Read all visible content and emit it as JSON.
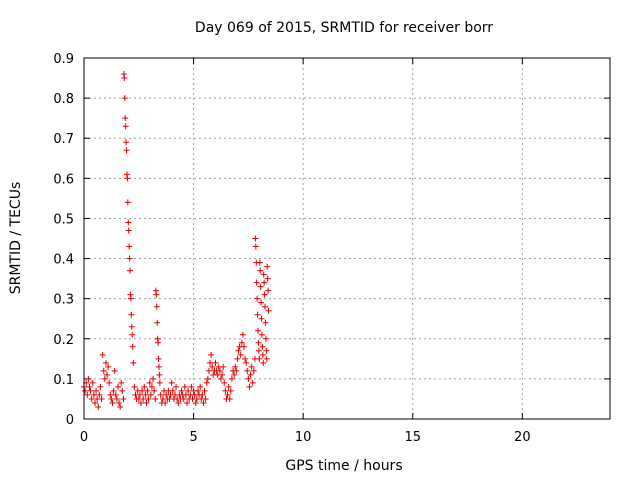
{
  "chart_data": {
    "type": "scatter",
    "title": "Day 069 of 2015, SRMTID for receiver borr",
    "xlabel": "GPS time / hours",
    "ylabel": "SRMTID / TECUs",
    "xlim": [
      0,
      24
    ],
    "ylim": [
      0,
      0.9
    ],
    "xticks": [
      0,
      5,
      10,
      15,
      20
    ],
    "yticks": [
      0,
      0.1,
      0.2,
      0.3,
      0.4,
      0.5,
      0.6,
      0.7,
      0.8,
      0.9
    ],
    "xtick_labels": [
      "0",
      "5",
      "10",
      "15",
      "20"
    ],
    "ytick_labels": [
      "0",
      "0.1",
      "0.2",
      "0.3",
      "0.4",
      "0.5",
      "0.6",
      "0.7",
      "0.8",
      "0.9"
    ],
    "grid": true,
    "marker": "+",
    "color": "#e00000",
    "series": [
      {
        "name": "SRMTID",
        "points": [
          [
            0.0,
            0.08
          ],
          [
            0.05,
            0.07
          ],
          [
            0.1,
            0.09
          ],
          [
            0.15,
            0.06
          ],
          [
            0.2,
            0.1
          ],
          [
            0.25,
            0.08
          ],
          [
            0.3,
            0.07
          ],
          [
            0.35,
            0.05
          ],
          [
            0.4,
            0.09
          ],
          [
            0.45,
            0.06
          ],
          [
            0.5,
            0.04
          ],
          [
            0.55,
            0.07
          ],
          [
            0.6,
            0.05
          ],
          [
            0.65,
            0.03
          ],
          [
            0.7,
            0.06
          ],
          [
            0.75,
            0.08
          ],
          [
            0.8,
            0.05
          ],
          [
            0.85,
            0.16
          ],
          [
            0.9,
            0.12
          ],
          [
            0.95,
            0.1
          ],
          [
            1.0,
            0.14
          ],
          [
            1.05,
            0.11
          ],
          [
            1.1,
            0.13
          ],
          [
            1.15,
            0.09
          ],
          [
            1.2,
            0.06
          ],
          [
            1.25,
            0.05
          ],
          [
            1.3,
            0.04
          ],
          [
            1.35,
            0.07
          ],
          [
            1.4,
            0.12
          ],
          [
            1.45,
            0.06
          ],
          [
            1.5,
            0.05
          ],
          [
            1.55,
            0.08
          ],
          [
            1.6,
            0.04
          ],
          [
            1.65,
            0.03
          ],
          [
            1.7,
            0.09
          ],
          [
            1.75,
            0.07
          ],
          [
            1.8,
            0.05
          ],
          [
            1.82,
            0.86
          ],
          [
            1.84,
            0.85
          ],
          [
            1.86,
            0.8
          ],
          [
            1.88,
            0.75
          ],
          [
            1.9,
            0.73
          ],
          [
            1.92,
            0.69
          ],
          [
            1.94,
            0.67
          ],
          [
            1.96,
            0.61
          ],
          [
            1.98,
            0.6
          ],
          [
            2.0,
            0.54
          ],
          [
            2.02,
            0.49
          ],
          [
            2.04,
            0.47
          ],
          [
            2.06,
            0.43
          ],
          [
            2.08,
            0.4
          ],
          [
            2.1,
            0.37
          ],
          [
            2.12,
            0.31
          ],
          [
            2.14,
            0.3
          ],
          [
            2.16,
            0.26
          ],
          [
            2.18,
            0.23
          ],
          [
            2.2,
            0.21
          ],
          [
            2.22,
            0.18
          ],
          [
            2.25,
            0.14
          ],
          [
            2.3,
            0.08
          ],
          [
            2.35,
            0.06
          ],
          [
            2.4,
            0.05
          ],
          [
            2.45,
            0.07
          ],
          [
            2.5,
            0.05
          ],
          [
            2.55,
            0.06
          ],
          [
            2.6,
            0.04
          ],
          [
            2.65,
            0.07
          ],
          [
            2.7,
            0.05
          ],
          [
            2.75,
            0.08
          ],
          [
            2.8,
            0.06
          ],
          [
            2.85,
            0.04
          ],
          [
            2.9,
            0.07
          ],
          [
            2.95,
            0.05
          ],
          [
            3.0,
            0.09
          ],
          [
            3.05,
            0.06
          ],
          [
            3.1,
            0.08
          ],
          [
            3.15,
            0.1
          ],
          [
            3.2,
            0.07
          ],
          [
            3.25,
            0.05
          ],
          [
            3.28,
            0.32
          ],
          [
            3.3,
            0.31
          ],
          [
            3.32,
            0.28
          ],
          [
            3.34,
            0.24
          ],
          [
            3.36,
            0.2
          ],
          [
            3.38,
            0.19
          ],
          [
            3.4,
            0.15
          ],
          [
            3.42,
            0.13
          ],
          [
            3.44,
            0.11
          ],
          [
            3.46,
            0.09
          ],
          [
            3.5,
            0.06
          ],
          [
            3.55,
            0.04
          ],
          [
            3.6,
            0.05
          ],
          [
            3.65,
            0.07
          ],
          [
            3.7,
            0.04
          ],
          [
            3.75,
            0.06
          ],
          [
            3.8,
            0.05
          ],
          [
            3.85,
            0.07
          ],
          [
            3.9,
            0.05
          ],
          [
            3.95,
            0.06
          ],
          [
            4.0,
            0.09
          ],
          [
            4.05,
            0.07
          ],
          [
            4.1,
            0.05
          ],
          [
            4.15,
            0.06
          ],
          [
            4.2,
            0.08
          ],
          [
            4.25,
            0.05
          ],
          [
            4.3,
            0.04
          ],
          [
            4.35,
            0.06
          ],
          [
            4.4,
            0.05
          ],
          [
            4.45,
            0.07
          ],
          [
            4.5,
            0.06
          ],
          [
            4.55,
            0.05
          ],
          [
            4.6,
            0.08
          ],
          [
            4.65,
            0.06
          ],
          [
            4.7,
            0.04
          ],
          [
            4.75,
            0.07
          ],
          [
            4.8,
            0.05
          ],
          [
            4.85,
            0.06
          ],
          [
            4.9,
            0.08
          ],
          [
            4.95,
            0.05
          ],
          [
            5.0,
            0.07
          ],
          [
            5.05,
            0.06
          ],
          [
            5.1,
            0.04
          ],
          [
            5.15,
            0.05
          ],
          [
            5.2,
            0.07
          ],
          [
            5.25,
            0.06
          ],
          [
            5.3,
            0.08
          ],
          [
            5.35,
            0.05
          ],
          [
            5.4,
            0.06
          ],
          [
            5.45,
            0.04
          ],
          [
            5.5,
            0.07
          ],
          [
            5.55,
            0.05
          ],
          [
            5.6,
            0.09
          ],
          [
            5.65,
            0.1
          ],
          [
            5.7,
            0.12
          ],
          [
            5.75,
            0.14
          ],
          [
            5.8,
            0.16
          ],
          [
            5.85,
            0.13
          ],
          [
            5.9,
            0.11
          ],
          [
            5.95,
            0.12
          ],
          [
            6.0,
            0.14
          ],
          [
            6.05,
            0.12
          ],
          [
            6.1,
            0.11
          ],
          [
            6.15,
            0.13
          ],
          [
            6.2,
            0.12
          ],
          [
            6.25,
            0.1
          ],
          [
            6.3,
            0.11
          ],
          [
            6.35,
            0.13
          ],
          [
            6.4,
            0.09
          ],
          [
            6.45,
            0.07
          ],
          [
            6.5,
            0.05
          ],
          [
            6.55,
            0.06
          ],
          [
            6.6,
            0.08
          ],
          [
            6.65,
            0.05
          ],
          [
            6.7,
            0.07
          ],
          [
            6.75,
            0.1
          ],
          [
            6.8,
            0.12
          ],
          [
            6.85,
            0.11
          ],
          [
            6.9,
            0.13
          ],
          [
            6.95,
            0.12
          ],
          [
            7.0,
            0.15
          ],
          [
            7.05,
            0.17
          ],
          [
            7.1,
            0.18
          ],
          [
            7.15,
            0.16
          ],
          [
            7.2,
            0.19
          ],
          [
            7.25,
            0.21
          ],
          [
            7.3,
            0.18
          ],
          [
            7.35,
            0.15
          ],
          [
            7.4,
            0.14
          ],
          [
            7.45,
            0.12
          ],
          [
            7.5,
            0.1
          ],
          [
            7.55,
            0.08
          ],
          [
            7.6,
            0.11
          ],
          [
            7.65,
            0.13
          ],
          [
            7.7,
            0.09
          ],
          [
            7.75,
            0.12
          ],
          [
            7.8,
            0.15
          ],
          [
            7.82,
            0.45
          ],
          [
            7.84,
            0.43
          ],
          [
            7.86,
            0.39
          ],
          [
            7.88,
            0.34
          ],
          [
            7.9,
            0.3
          ],
          [
            7.92,
            0.26
          ],
          [
            7.94,
            0.22
          ],
          [
            7.96,
            0.19
          ],
          [
            7.98,
            0.17
          ],
          [
            8.0,
            0.15
          ],
          [
            8.02,
            0.39
          ],
          [
            8.04,
            0.37
          ],
          [
            8.06,
            0.33
          ],
          [
            8.08,
            0.29
          ],
          [
            8.1,
            0.25
          ],
          [
            8.12,
            0.21
          ],
          [
            8.14,
            0.18
          ],
          [
            8.16,
            0.16
          ],
          [
            8.18,
            0.14
          ],
          [
            8.2,
            0.36
          ],
          [
            8.22,
            0.34
          ],
          [
            8.24,
            0.31
          ],
          [
            8.26,
            0.28
          ],
          [
            8.28,
            0.24
          ],
          [
            8.3,
            0.2
          ],
          [
            8.32,
            0.17
          ],
          [
            8.34,
            0.15
          ],
          [
            8.36,
            0.38
          ],
          [
            8.38,
            0.35
          ],
          [
            8.4,
            0.32
          ],
          [
            8.42,
            0.27
          ]
        ]
      }
    ]
  }
}
